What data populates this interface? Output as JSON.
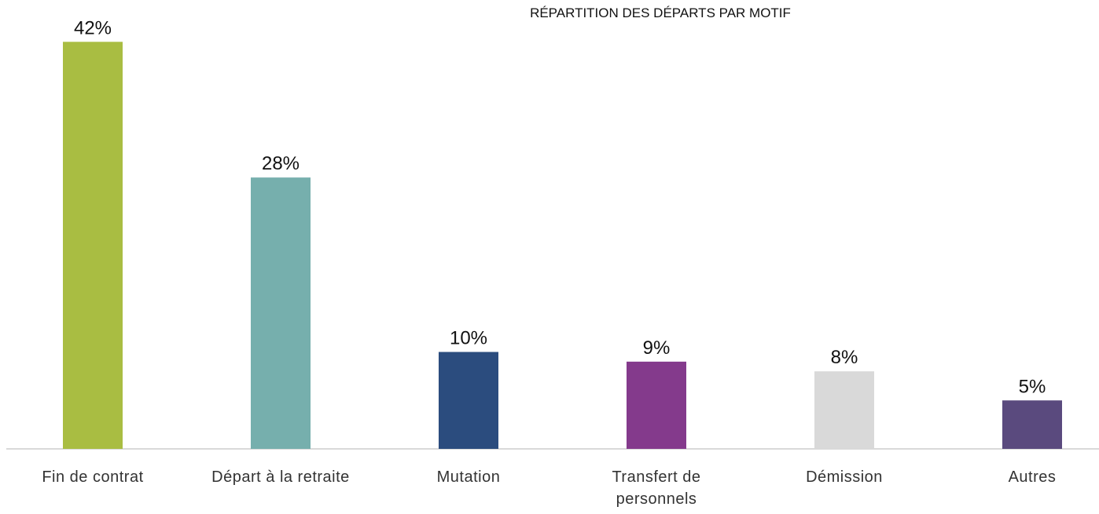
{
  "chart_data": {
    "type": "bar",
    "title": "RÉPARTITION DES DÉPARTS PAR MOTIF",
    "categories": [
      "Fin de contrat",
      "Départ à la retraite",
      "Mutation",
      "Transfert de personnels",
      "Démission",
      "Autres"
    ],
    "values": [
      42,
      28,
      10,
      9,
      8,
      5
    ],
    "value_labels": [
      "42%",
      "28%",
      "10%",
      "9%",
      "8%",
      "5%"
    ],
    "colors": [
      "#a9bd42",
      "#76afad",
      "#2b4c7e",
      "#843a8c",
      "#d9d9d9",
      "#5a4a7e"
    ],
    "grid": false
  }
}
